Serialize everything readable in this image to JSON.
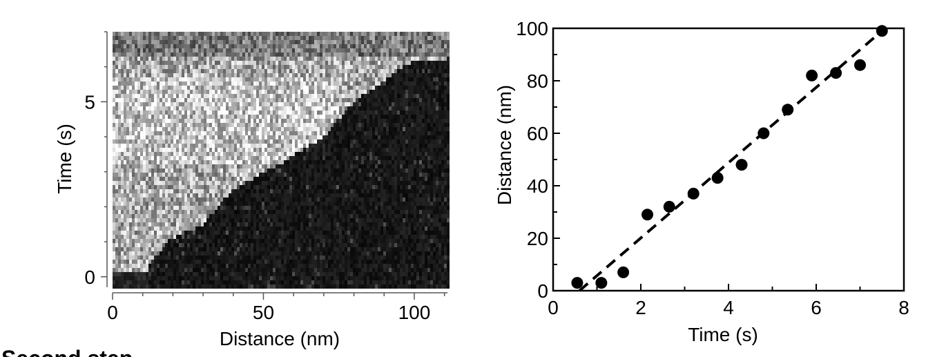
{
  "chart_data": [
    {
      "type": "heatmap",
      "xlabel": "Distance (nm)",
      "ylabel": "Time (s)",
      "xlim": [
        0,
        111
      ],
      "ylim": [
        -0.3,
        7
      ],
      "xticks": [
        0,
        50,
        100
      ],
      "yticks": [
        0,
        5
      ],
      "colormap": "grayscale",
      "bright_region_boundary": [
        {
          "time": 0.3,
          "distance": 12
        },
        {
          "time": 1.0,
          "distance": 18
        },
        {
          "time": 1.5,
          "distance": 30
        },
        {
          "time": 2.5,
          "distance": 40
        },
        {
          "time": 3.2,
          "distance": 55
        },
        {
          "time": 4.0,
          "distance": 70
        },
        {
          "time": 5.0,
          "distance": 80
        },
        {
          "time": 6.2,
          "distance": 100
        }
      ]
    },
    {
      "type": "scatter",
      "xlabel": "Time (s)",
      "ylabel": "Distance (nm)",
      "xlim": [
        0,
        8
      ],
      "ylim": [
        0,
        100
      ],
      "xticks": [
        0,
        2,
        4,
        6,
        8
      ],
      "yticks": [
        0,
        20,
        40,
        60,
        80,
        100
      ],
      "series": [
        {
          "marker": "filled-circle",
          "color": "#000000",
          "x": [
            0.55,
            1.1,
            1.6,
            2.15,
            2.65,
            3.2,
            3.75,
            4.3,
            4.8,
            5.35,
            5.9,
            6.45,
            7.0,
            7.5
          ],
          "y": [
            3,
            3,
            7,
            29,
            32,
            37,
            43,
            48,
            60,
            69,
            82,
            83,
            86,
            99
          ]
        }
      ],
      "fit_line": {
        "style": "dashed",
        "color": "#000000",
        "x": [
          0.6,
          7.5
        ],
        "y": [
          0,
          99
        ]
      }
    }
  ],
  "footer_text": "Second step"
}
